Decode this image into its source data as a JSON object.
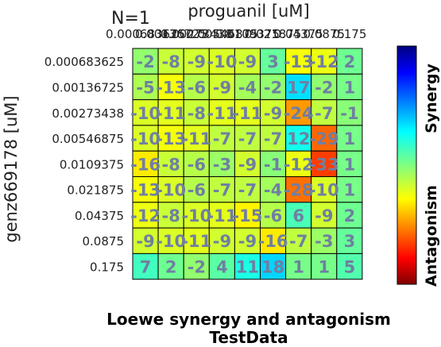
{
  "chart_data": {
    "type": "heatmap",
    "title": "Loewe synergy and antagonism",
    "subtitle": "TestData",
    "corner_label": "N=1",
    "xlabel": "proguanil [uM]",
    "ylabel": "genz669178 [uM]",
    "x_categories": [
      "0.000683625",
      "0.00136725",
      "0.00273438",
      "0.00546875",
      "0.0109375",
      "0.021875",
      "0.04375",
      "0.0875",
      "0.175"
    ],
    "y_categories": [
      "0.000683625",
      "0.00136725",
      "0.00273438",
      "0.00546875",
      "0.0109375",
      "0.021875",
      "0.04375",
      "0.0875",
      "0.175"
    ],
    "values": [
      [
        -2,
        -8,
        -9,
        -10,
        -9,
        3,
        -13,
        -12,
        2
      ],
      [
        -5,
        -13,
        -6,
        -9,
        -4,
        -2,
        17,
        -2,
        1
      ],
      [
        -10,
        -11,
        -8,
        -11,
        -11,
        -9,
        -24,
        -7,
        -1
      ],
      [
        -10,
        -13,
        -11,
        -7,
        -7,
        -7,
        12,
        -29,
        1
      ],
      [
        -16,
        -8,
        -6,
        -3,
        -9,
        -1,
        -12,
        -33,
        1
      ],
      [
        -13,
        -10,
        -6,
        -7,
        -7,
        -4,
        -28,
        -10,
        1
      ],
      [
        -12,
        -8,
        -10,
        -11,
        -15,
        -6,
        6,
        -9,
        2
      ],
      [
        -9,
        -10,
        -11,
        -9,
        -9,
        -16,
        -7,
        -3,
        3
      ],
      [
        7,
        2,
        -2,
        4,
        11,
        18,
        1,
        1,
        5
      ]
    ],
    "colorbar": {
      "colormap": "jet",
      "range": [
        -50,
        50
      ],
      "top_label": "Synergy",
      "bottom_label": "Antagonism"
    }
  }
}
